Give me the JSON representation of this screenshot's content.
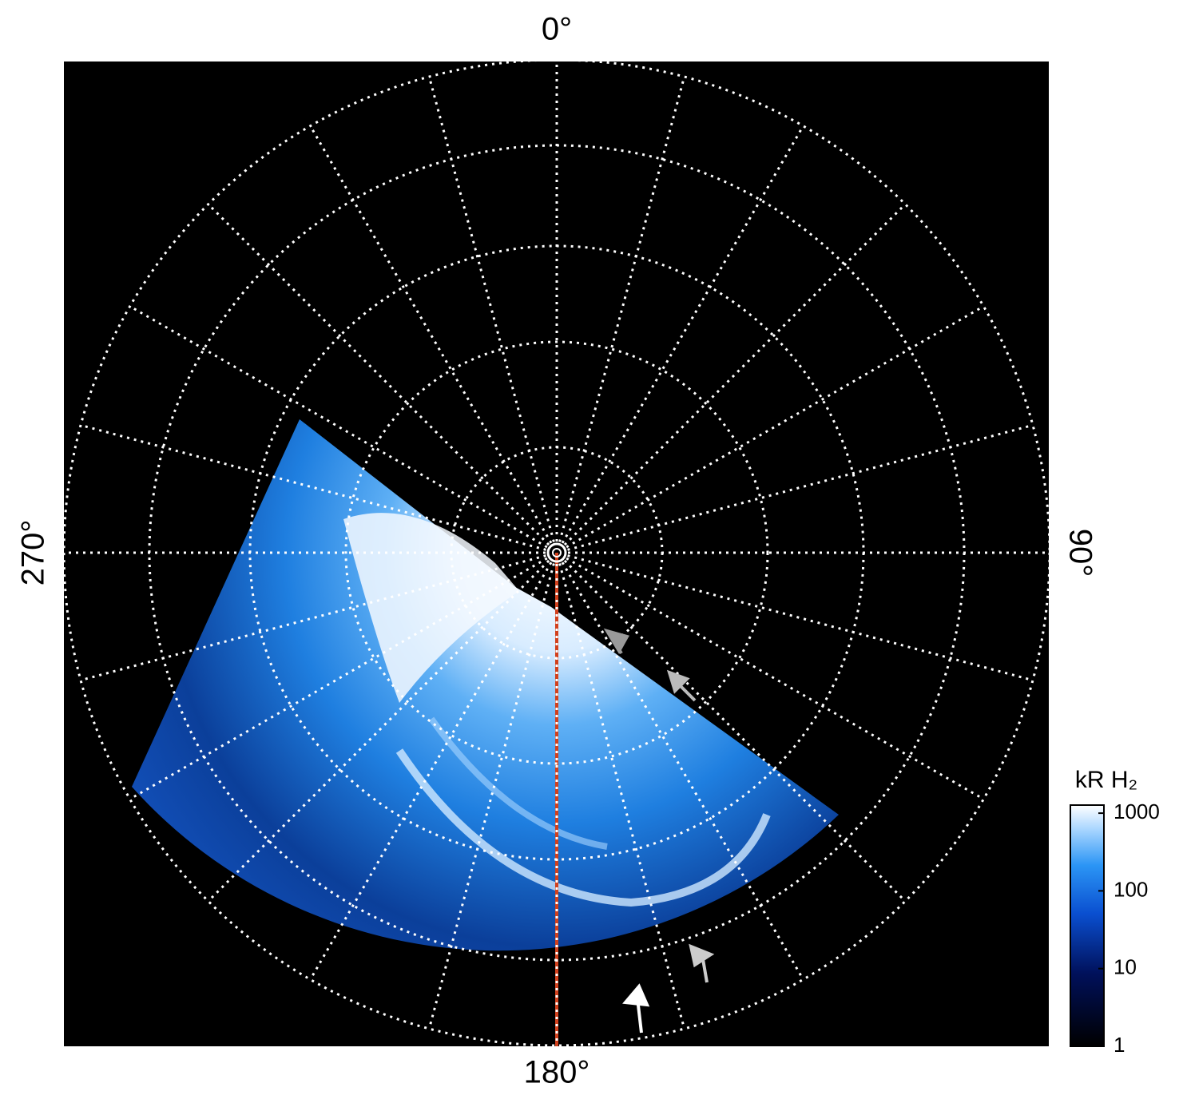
{
  "chart_data": {
    "type": "polar-image",
    "angle_ticks": [
      {
        "value": 0,
        "label": "0°"
      },
      {
        "value": 90,
        "label": "90°"
      },
      {
        "value": 180,
        "label": "180°"
      },
      {
        "value": 270,
        "label": "270°"
      }
    ],
    "colorbar": {
      "label": "kR H₂",
      "log": true,
      "lim": [
        1,
        1270
      ],
      "ticks": [
        1,
        10,
        100,
        1000
      ]
    }
  }
}
